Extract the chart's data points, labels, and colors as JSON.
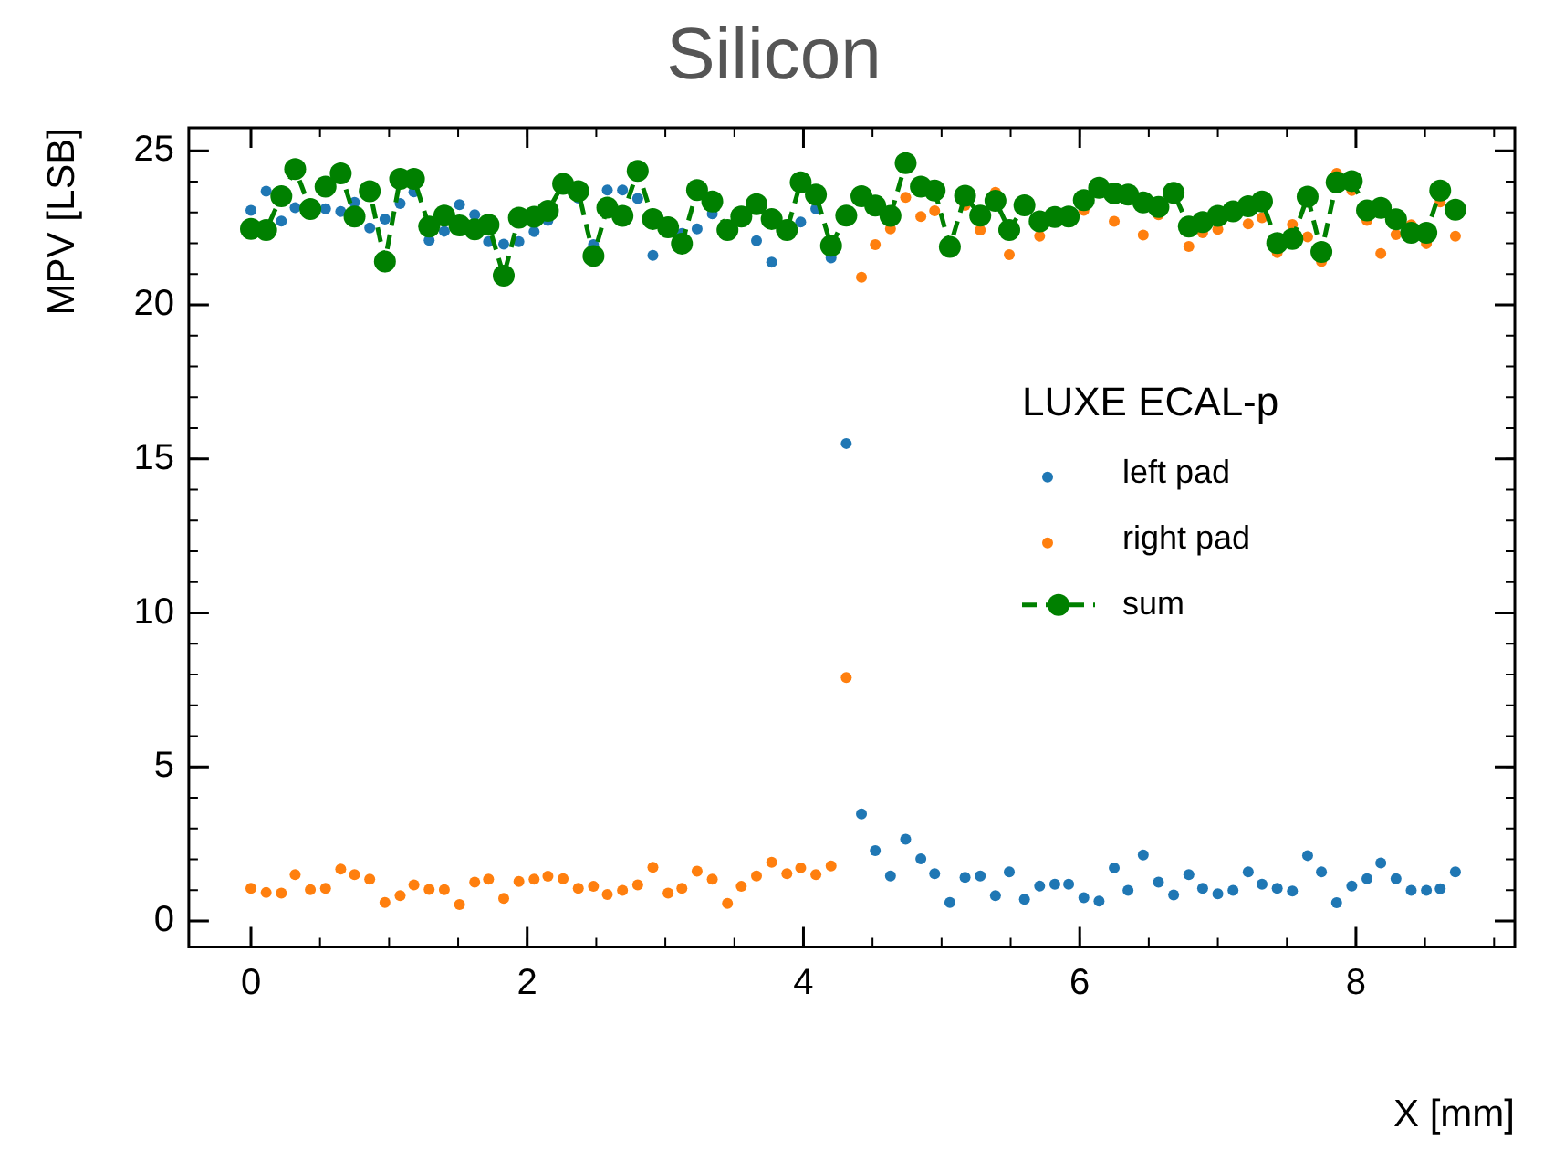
{
  "chart_data": {
    "type": "scatter",
    "title": "Silicon",
    "xlabel": "X [mm]",
    "ylabel": "MPV [LSB]",
    "legend_title": "LUXE ECAL-p",
    "legend": "right",
    "grid": false,
    "xlim": [
      -0.45,
      9.15
    ],
    "ylim": [
      -0.85,
      25.75
    ],
    "xticks": [
      0,
      2,
      4,
      6,
      8
    ],
    "yticks": [
      0,
      5,
      10,
      15,
      20,
      25
    ],
    "x": [
      0,
      0.11,
      0.22,
      0.32,
      0.43,
      0.54,
      0.65,
      0.75,
      0.86,
      0.97,
      1.08,
      1.18,
      1.29,
      1.4,
      1.51,
      1.62,
      1.72,
      1.83,
      1.94,
      2.05,
      2.15,
      2.26,
      2.37,
      2.48,
      2.58,
      2.69,
      2.8,
      2.91,
      3.02,
      3.12,
      3.23,
      3.34,
      3.45,
      3.55,
      3.66,
      3.77,
      3.88,
      3.98,
      4.09,
      4.2,
      4.31,
      4.42,
      4.52,
      4.63,
      4.74,
      4.85,
      4.95,
      5.06,
      5.17,
      5.28,
      5.39,
      5.49,
      5.6,
      5.71,
      5.82,
      5.92,
      6.03,
      6.14,
      6.25,
      6.35,
      6.46,
      6.57,
      6.68,
      6.79,
      6.89,
      7.0,
      7.11,
      7.22,
      7.32,
      7.43,
      7.54,
      7.65,
      7.75,
      7.86,
      7.97,
      8.08,
      8.18,
      8.29,
      8.4,
      8.51,
      8.61,
      8.72
    ],
    "series": [
      {
        "name": "left pad",
        "type": "scatter",
        "marker": "circle",
        "color": "#1f77b4",
        "values": [
          23.07,
          23.69,
          22.72,
          23.16,
          null,
          23.12,
          23.03,
          23.33,
          22.5,
          22.79,
          23.29,
          23.67,
          22.1,
          22.39,
          23.25,
          22.93,
          22.05,
          21.97,
          22.05,
          22.38,
          22.74,
          null,
          23.47,
          21.96,
          23.73,
          23.73,
          23.45,
          21.61,
          null,
          22.32,
          22.47,
          22.96,
          null,
          null,
          22.08,
          21.39,
          null,
          22.69,
          23.12,
          21.53,
          15.5,
          3.47,
          2.28,
          1.46,
          2.65,
          2.01,
          1.53,
          0.6,
          1.41,
          1.46,
          0.82,
          1.59,
          0.7,
          1.13,
          1.19,
          1.19,
          0.75,
          0.64,
          1.72,
          0.99,
          2.14,
          1.26,
          0.84,
          1.5,
          1.06,
          0.88,
          0.99,
          1.59,
          1.19,
          1.06,
          0.97,
          2.12,
          1.59,
          0.59,
          1.13,
          1.37,
          1.88,
          1.37,
          0.99,
          0.99,
          1.04,
          1.59
        ]
      },
      {
        "name": "right pad",
        "type": "scatter",
        "marker": "circle",
        "color": "#ff7f0e",
        "values": [
          1.06,
          0.92,
          0.9,
          1.5,
          1.01,
          1.06,
          1.68,
          1.5,
          1.35,
          0.6,
          0.82,
          1.17,
          1.02,
          1.01,
          0.53,
          1.26,
          1.35,
          0.73,
          1.28,
          1.35,
          1.45,
          1.37,
          1.06,
          1.12,
          0.86,
          0.99,
          1.17,
          1.74,
          0.9,
          1.06,
          1.61,
          1.35,
          0.57,
          1.12,
          1.46,
          1.9,
          1.53,
          1.72,
          1.5,
          1.78,
          7.9,
          20.9,
          21.96,
          22.47,
          23.49,
          22.87,
          23.05,
          null,
          23.23,
          22.43,
          23.65,
          21.63,
          null,
          22.23,
          null,
          null,
          23.07,
          null,
          22.71,
          null,
          22.27,
          22.93,
          null,
          21.9,
          22.34,
          22.45,
          null,
          22.63,
          22.83,
          21.7,
          22.61,
          22.21,
          21.41,
          24.27,
          23.71,
          22.74,
          21.67,
          22.28,
          22.6,
          21.99,
          23.34,
          22.23
        ]
      },
      {
        "name": "sum",
        "type": "line",
        "marker": "circle",
        "line_style": "dashed",
        "color": "#008000",
        "values": [
          22.47,
          22.43,
          23.53,
          24.41,
          23.11,
          23.84,
          24.27,
          22.87,
          23.69,
          21.41,
          24.09,
          24.09,
          22.54,
          22.9,
          22.58,
          22.45,
          22.6,
          20.95,
          22.83,
          22.86,
          23.05,
          23.93,
          23.69,
          21.59,
          23.16,
          22.89,
          24.35,
          22.79,
          22.52,
          21.99,
          23.73,
          23.36,
          22.43,
          22.87,
          23.27,
          22.79,
          22.43,
          23.98,
          23.58,
          21.92,
          22.9,
          23.53,
          23.22,
          22.89,
          24.6,
          23.84,
          23.71,
          21.88,
          23.54,
          22.9,
          23.38,
          22.43,
          23.23,
          22.71,
          22.85,
          22.87,
          23.4,
          23.8,
          23.62,
          23.58,
          23.33,
          23.18,
          23.64,
          22.54,
          22.69,
          22.89,
          23.04,
          23.2,
          23.36,
          22.01,
          22.14,
          23.51,
          21.72,
          23.98,
          24.02,
          23.07,
          23.15,
          22.78,
          22.34,
          22.34,
          23.71,
          23.09
        ]
      }
    ]
  }
}
